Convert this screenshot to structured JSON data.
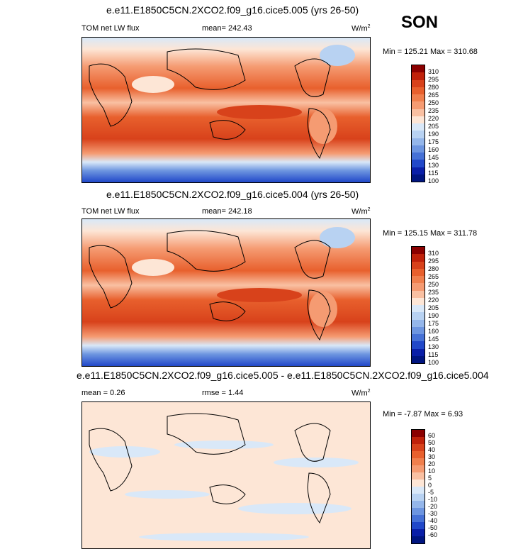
{
  "season": "SON",
  "panel1": {
    "title": "e.e11.E1850C5CN.2XCO2.f09_g16.cice5.005 (yrs 26-50)",
    "left": "TOM net LW flux",
    "center": "mean= 242.43",
    "units": "W/m",
    "units_sup": "2",
    "minmax": "Min = 125.21 Max = 310.68",
    "levels": [
      "310",
      "295",
      "280",
      "265",
      "250",
      "235",
      "220",
      "205",
      "190",
      "175",
      "160",
      "145",
      "130",
      "115",
      "100"
    ]
  },
  "panel2": {
    "title": "e.e11.E1850C5CN.2XCO2.f09_g16.cice5.004 (yrs 26-50)",
    "left": "TOM net LW flux",
    "center": "mean= 242.18",
    "units": "W/m",
    "units_sup": "2",
    "minmax": "Min = 125.15 Max = 311.78",
    "levels": [
      "310",
      "295",
      "280",
      "265",
      "250",
      "235",
      "220",
      "205",
      "190",
      "175",
      "160",
      "145",
      "130",
      "115",
      "100"
    ]
  },
  "panel3": {
    "title": "e.e11.E1850C5CN.2XCO2.f09_g16.cice5.005 - e.e11.E1850C5CN.2XCO2.f09_g16.cice5.004",
    "left": "mean =   0.26",
    "center": "rmse =   1.44",
    "units": "W/m",
    "units_sup": "2",
    "minmax": "Min =  -7.87 Max =   6.93",
    "levels": [
      "60",
      "50",
      "40",
      "30",
      "20",
      "10",
      "5",
      "0",
      "-5",
      "-10",
      "-20",
      "-30",
      "-40",
      "-50",
      "-60"
    ]
  },
  "colors": {
    "abs_bar": [
      "#8b0000",
      "#c0210a",
      "#d8421b",
      "#e8602d",
      "#f07f4d",
      "#f59b72",
      "#f9c0a2",
      "#fde6d6",
      "#d9e8f8",
      "#b8d2f2",
      "#94b6ea",
      "#6d95e0",
      "#4671d6",
      "#2148c9",
      "#0a1fa8",
      "#001580"
    ],
    "diff_bar": [
      "#8b0000",
      "#c0210a",
      "#d8421b",
      "#e8602d",
      "#f07f4d",
      "#f59b72",
      "#f9c0a2",
      "#fde6d6",
      "#d9e8f8",
      "#b8d2f2",
      "#94b6ea",
      "#6d95e0",
      "#4671d6",
      "#2148c9",
      "#0a1fa8",
      "#001580"
    ]
  }
}
